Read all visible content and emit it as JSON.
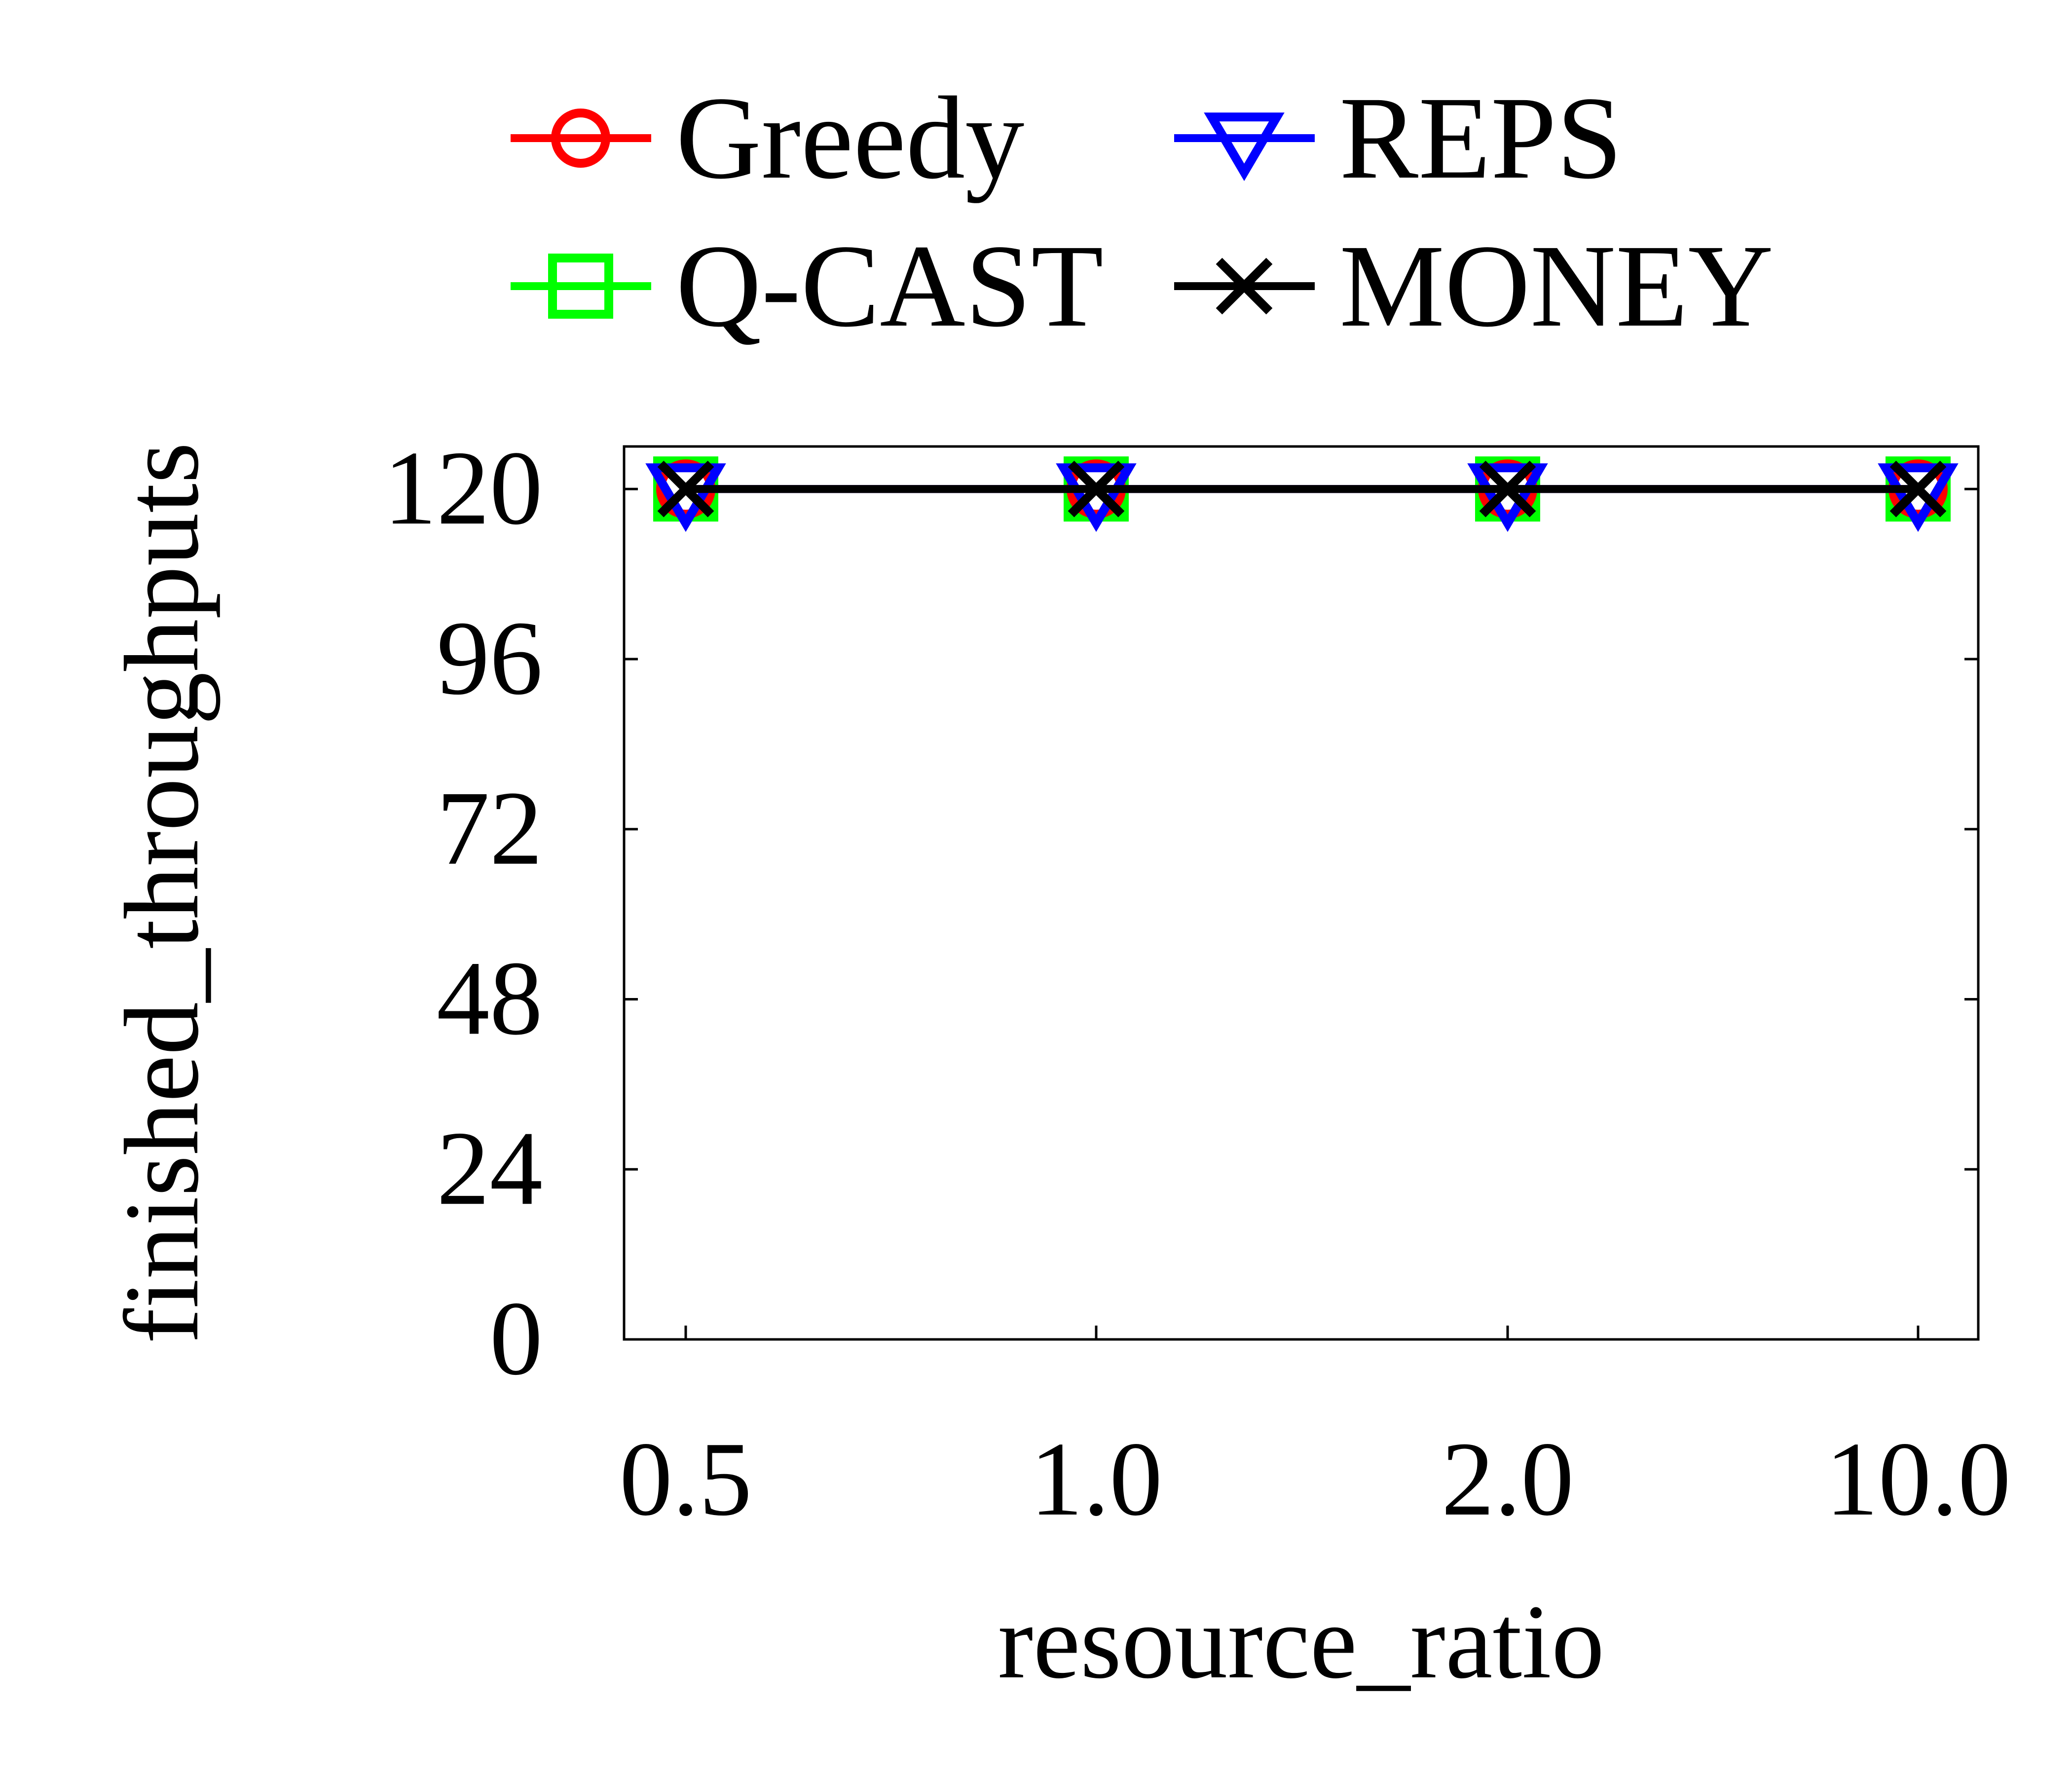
{
  "chart_data": {
    "type": "line",
    "categories": [
      "0.5",
      "1.0",
      "2.0",
      "10.0"
    ],
    "xlabel": "resource_ratio",
    "ylabel": "finished_throughputs",
    "ylim": [
      0,
      126
    ],
    "yticks": [
      0,
      24,
      48,
      72,
      96,
      120
    ],
    "grid": false,
    "legend_position": "top",
    "series": [
      {
        "name": "Greedy",
        "values": [
          120,
          120,
          120,
          120
        ],
        "color": "#ff0000",
        "marker": "circle"
      },
      {
        "name": "REPS",
        "values": [
          120,
          120,
          120,
          120
        ],
        "color": "#0000ff",
        "marker": "triangle-down"
      },
      {
        "name": "Q-CAST",
        "values": [
          120,
          120,
          120,
          120
        ],
        "color": "#00ff00",
        "marker": "square"
      },
      {
        "name": "MONEY",
        "values": [
          120,
          120,
          120,
          120
        ],
        "color": "#000000",
        "marker": "x"
      }
    ]
  }
}
